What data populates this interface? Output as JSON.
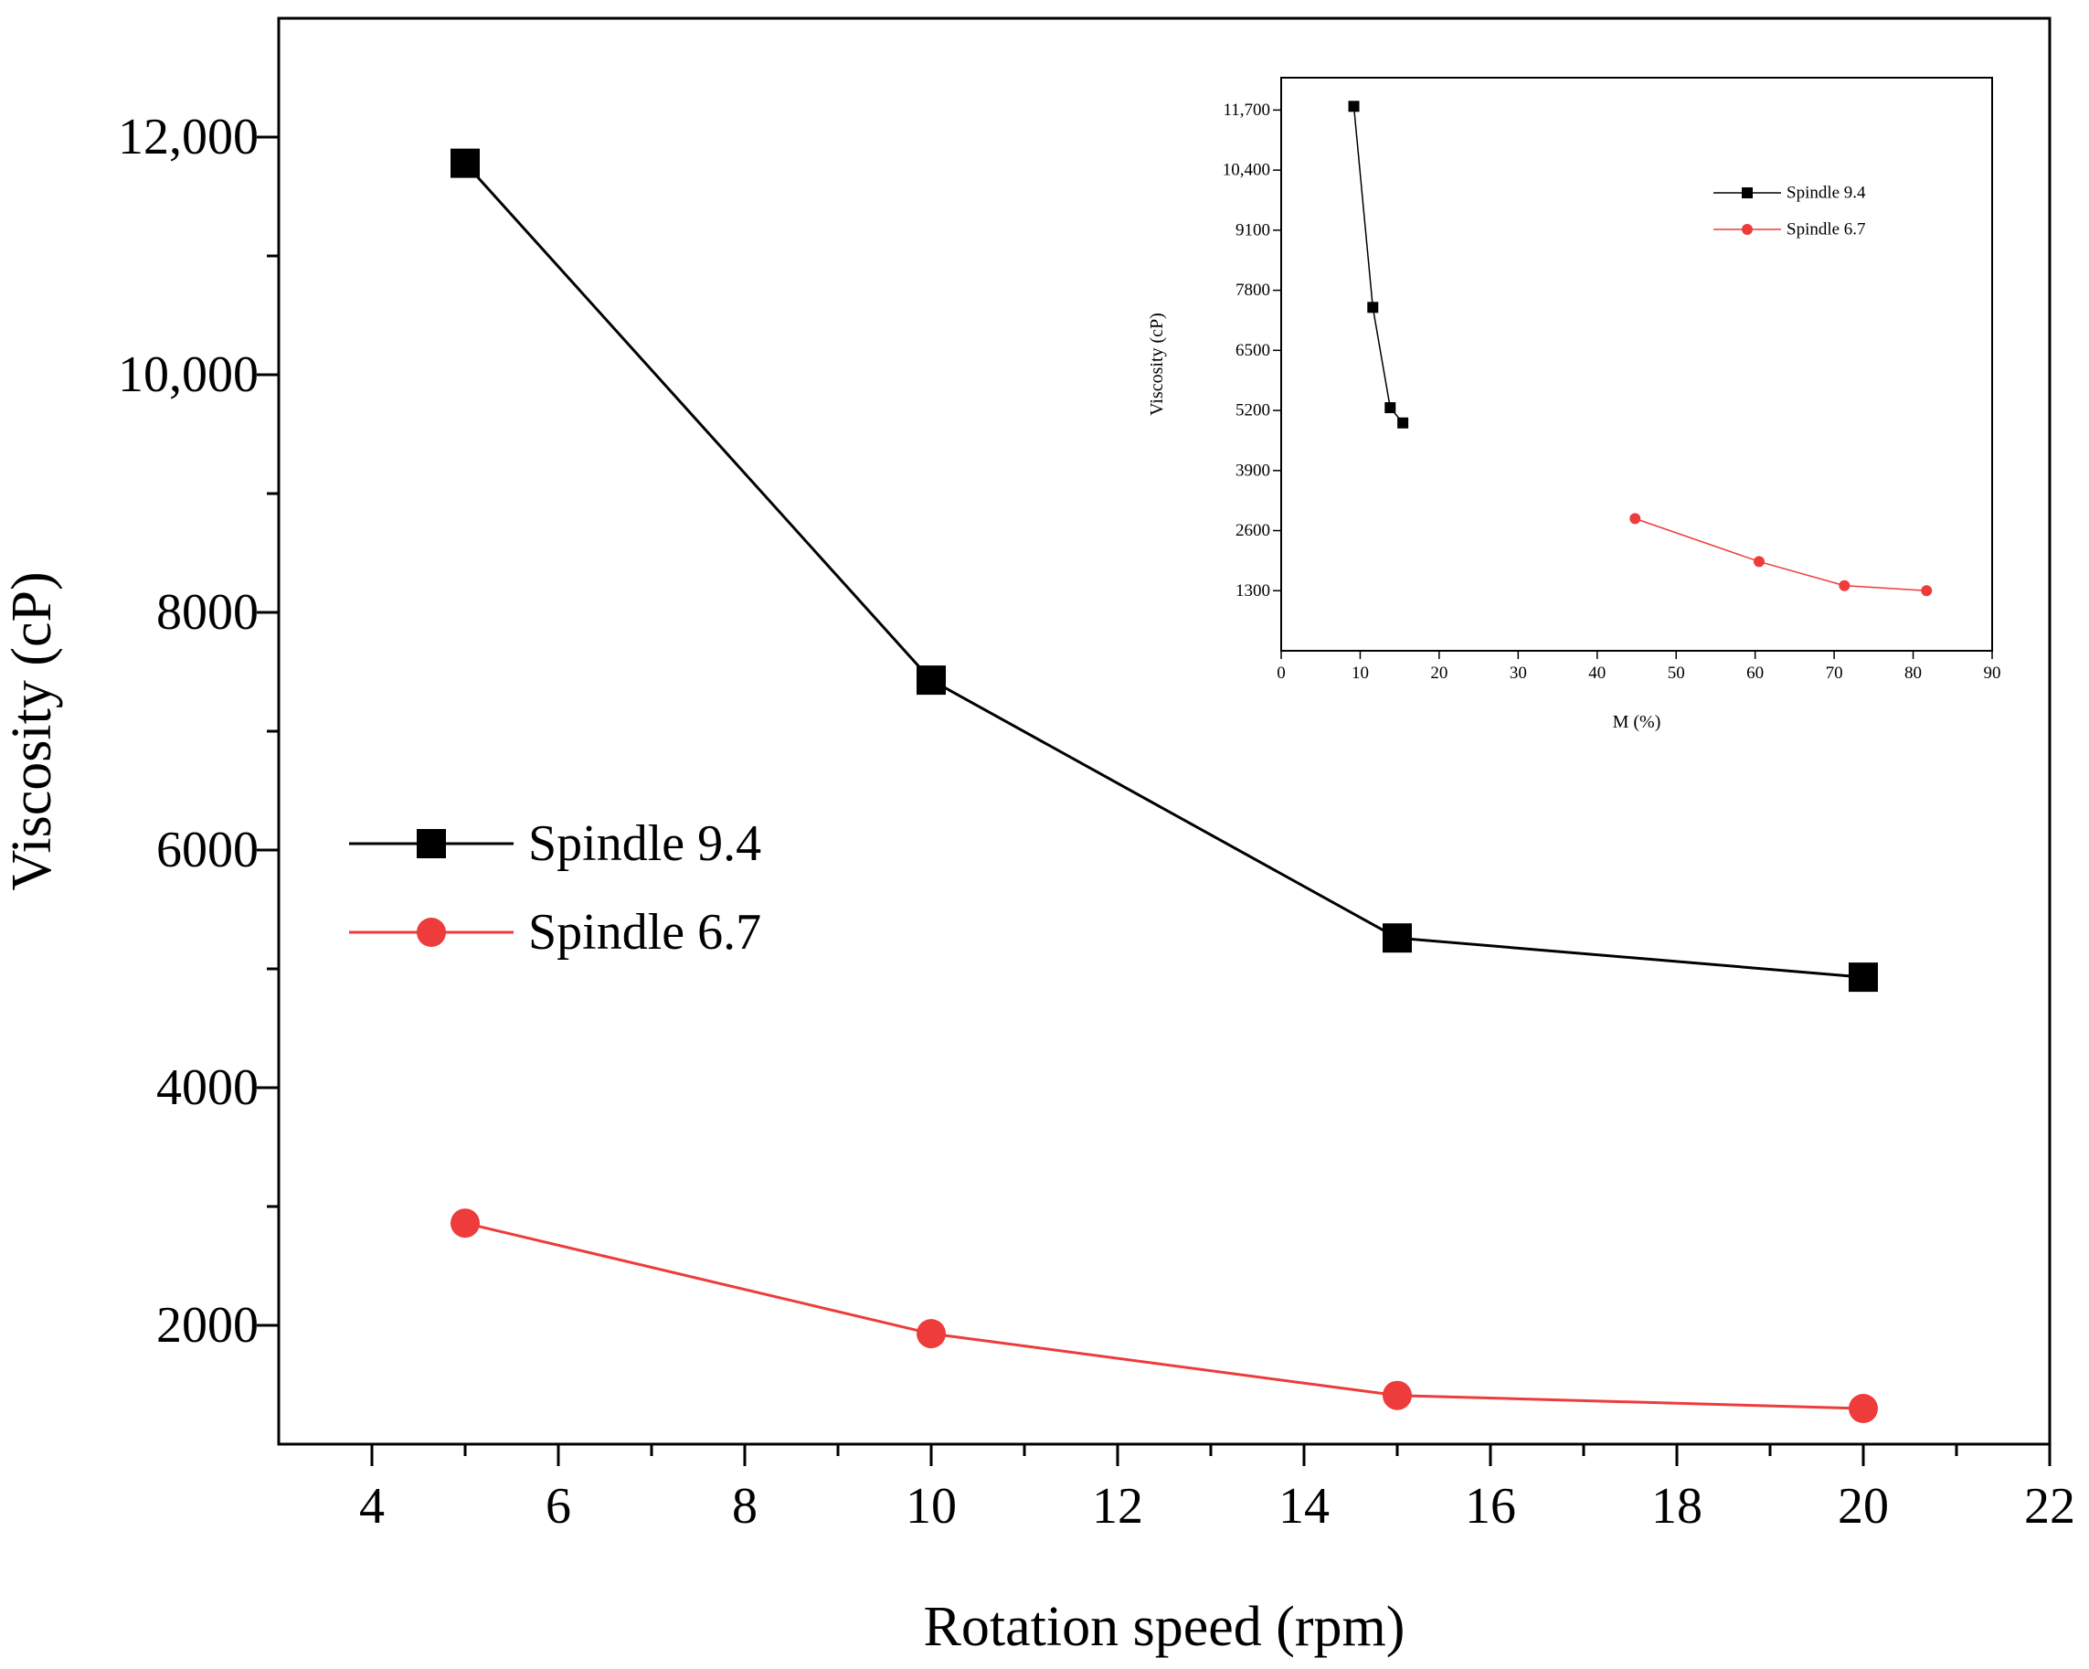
{
  "colors": {
    "spindle_9_4": "#000000",
    "spindle_6_7": "#ee3b3b",
    "axis": "#000000"
  },
  "chart_data": [
    {
      "id": "main",
      "type": "line",
      "title": "",
      "xlabel": "Rotation speed (rpm)",
      "ylabel": "Viscosity (cP)",
      "xlim": [
        3,
        22
      ],
      "ylim": [
        1000,
        13000
      ],
      "grid": false,
      "legend_position": "middle-left",
      "x_ticks": [
        4,
        6,
        8,
        10,
        12,
        14,
        16,
        18,
        20,
        22
      ],
      "x_tick_labels": [
        "4",
        "6",
        "8",
        "10",
        "12",
        "14",
        "16",
        "18",
        "20",
        "22"
      ],
      "y_ticks": [
        2000,
        4000,
        6000,
        8000,
        10000,
        12000
      ],
      "y_tick_labels": [
        "2000",
        "4000",
        "6000",
        "8000",
        "10,000",
        "12,000"
      ],
      "series": [
        {
          "name": "Spindle 9.4",
          "marker": "square",
          "x": [
            5,
            10,
            15,
            20
          ],
          "values": [
            11780,
            7430,
            5260,
            4930
          ]
        },
        {
          "name": "Spindle 6.7",
          "marker": "circle",
          "x": [
            5,
            10,
            15,
            20
          ],
          "values": [
            2860,
            1930,
            1410,
            1300
          ]
        }
      ]
    },
    {
      "id": "inset",
      "type": "line",
      "title": "",
      "xlabel": "M (%)",
      "ylabel": "Viscosity (cP)",
      "xlim": [
        0,
        90
      ],
      "ylim": [
        0,
        12400
      ],
      "grid": false,
      "legend_position": "top-right",
      "x_ticks": [
        0,
        10,
        20,
        30,
        40,
        50,
        60,
        70,
        80,
        90
      ],
      "x_tick_labels": [
        "0",
        "10",
        "20",
        "30",
        "40",
        "50",
        "60",
        "70",
        "80",
        "90"
      ],
      "y_ticks": [
        1300,
        2600,
        3900,
        5200,
        6500,
        7800,
        9100,
        10400,
        11700
      ],
      "y_tick_labels": [
        "1300",
        "2600",
        "3900",
        "5200",
        "6500",
        "7800",
        "9100",
        "10,400",
        "11,700"
      ],
      "series": [
        {
          "name": "Spindle 9.4",
          "marker": "square",
          "x": [
            9.2,
            11.6,
            13.8,
            15.4
          ],
          "values": [
            11780,
            7430,
            5260,
            4930
          ]
        },
        {
          "name": "Spindle 6.7",
          "marker": "circle",
          "x": [
            44.8,
            60.5,
            71.3,
            81.7
          ],
          "values": [
            2860,
            1930,
            1410,
            1300
          ]
        }
      ]
    }
  ]
}
